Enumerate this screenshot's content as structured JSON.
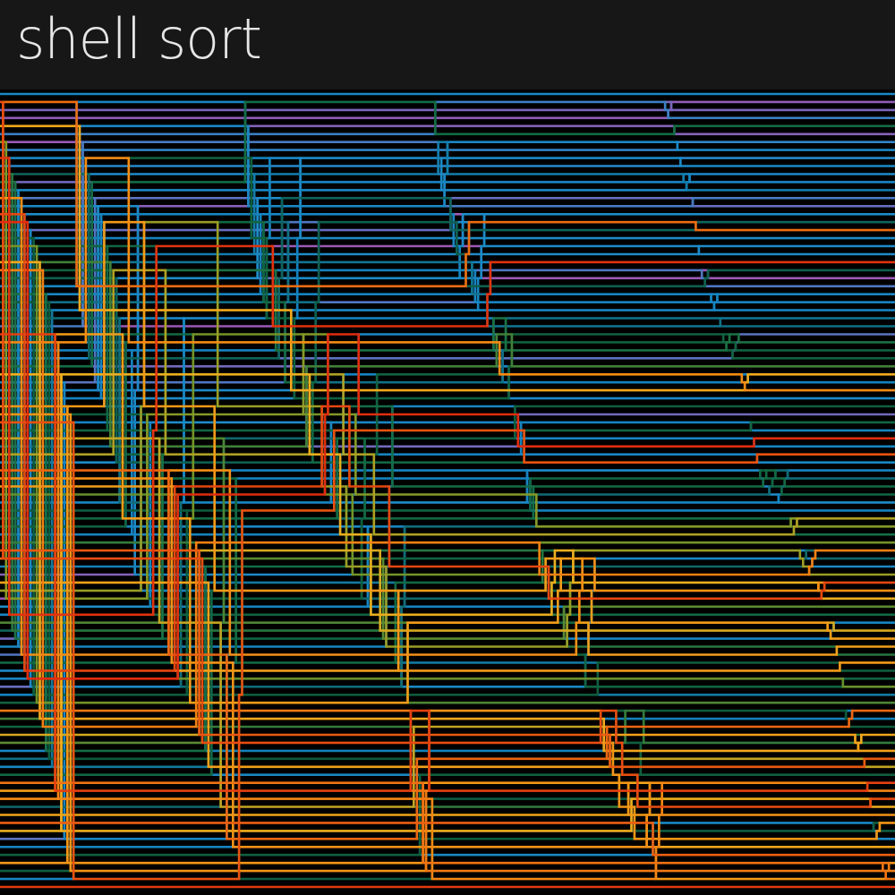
{
  "header": {
    "title": "shell sort"
  }
}
